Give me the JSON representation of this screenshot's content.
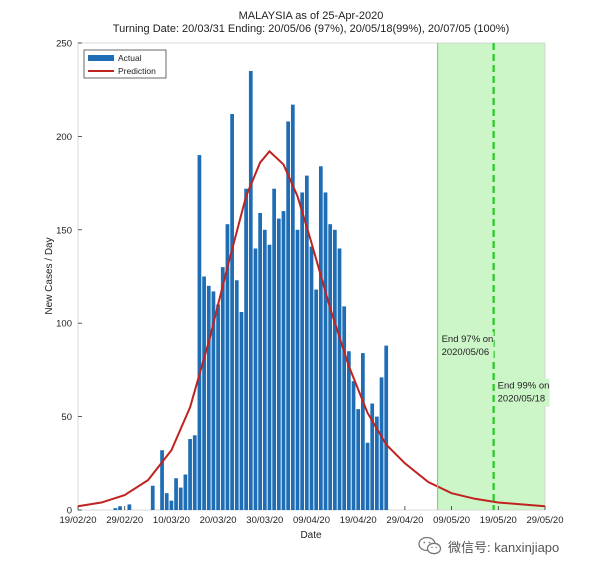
{
  "chart_data": {
    "type": "bar",
    "title": "MALAYSIA as of 25-Apr-2020",
    "subtitle": "Turning Date: 20/03/31  Ending: 20/05/06 (97%), 20/05/18(99%), 20/07/05 (100%)",
    "xlabel": "Date",
    "ylabel": "New Cases / Day",
    "ylim": [
      0,
      250
    ],
    "yticks": [
      "0",
      "50",
      "100",
      "150",
      "200",
      "250"
    ],
    "xticks": [
      "19/02/20",
      "29/02/20",
      "10/03/20",
      "20/03/20",
      "30/03/20",
      "09/04/20",
      "19/04/20",
      "29/04/20",
      "09/05/20",
      "19/05/20",
      "29/05/20"
    ],
    "x_start": "2020-02-19",
    "x_end": "2020-05-29",
    "legend": {
      "placement": "top-left",
      "entries": [
        "Actual",
        "Prediction"
      ]
    },
    "series": [
      {
        "name": "Actual",
        "type": "bar",
        "start_date": "2020-02-19",
        "values": [
          0,
          0,
          0,
          0,
          0,
          0,
          0,
          0,
          1,
          2,
          0,
          3,
          0,
          0,
          0,
          0,
          13,
          0,
          32,
          9,
          5,
          17,
          12,
          19,
          38,
          40,
          190,
          125,
          120,
          117,
          110,
          130,
          153,
          212,
          123,
          106,
          172,
          235,
          140,
          159,
          150,
          142,
          172,
          156,
          160,
          208,
          217,
          150,
          170,
          179,
          141,
          118,
          184,
          170,
          153,
          150,
          140,
          109,
          85,
          69,
          54,
          84,
          36,
          57,
          50,
          71,
          88
        ],
        "color": "#1f6eb5"
      },
      {
        "name": "Prediction",
        "type": "line",
        "color": "#c0231f",
        "peak_date": "2020-03-31",
        "peak_value": 192,
        "points": [
          [
            "2020-02-19",
            2
          ],
          [
            "2020-02-24",
            4
          ],
          [
            "2020-02-29",
            8
          ],
          [
            "2020-03-05",
            16
          ],
          [
            "2020-03-10",
            32
          ],
          [
            "2020-03-14",
            55
          ],
          [
            "2020-03-18",
            90
          ],
          [
            "2020-03-22",
            130
          ],
          [
            "2020-03-26",
            168
          ],
          [
            "2020-03-29",
            186
          ],
          [
            "2020-03-31",
            192
          ],
          [
            "2020-04-03",
            185
          ],
          [
            "2020-04-06",
            168
          ],
          [
            "2020-04-09",
            143
          ],
          [
            "2020-04-13",
            108
          ],
          [
            "2020-04-17",
            77
          ],
          [
            "2020-04-21",
            52
          ],
          [
            "2020-04-25",
            35
          ],
          [
            "2020-04-29",
            25
          ],
          [
            "2020-05-04",
            15
          ],
          [
            "2020-05-09",
            9
          ],
          [
            "2020-05-14",
            6
          ],
          [
            "2020-05-19",
            4
          ],
          [
            "2020-05-24",
            3
          ],
          [
            "2020-05-29",
            2
          ]
        ]
      }
    ],
    "shaded_region": {
      "start": "2020-05-06",
      "end": "2020-05-29",
      "color": "#ccf5c8"
    },
    "vlines": [
      {
        "date": "2020-05-06",
        "color": "#7dd87a",
        "style": "solid"
      },
      {
        "date": "2020-05-18",
        "color": "#27c927",
        "style": "dashed"
      }
    ],
    "annotations": [
      {
        "date": "2020-05-06",
        "value": 91,
        "lines": [
          "End 97% on",
          "2020/05/06"
        ]
      },
      {
        "date": "2020-05-18",
        "value": 66,
        "lines": [
          "End 99% on",
          "2020/05/18"
        ]
      }
    ]
  },
  "watermark": {
    "text": "微信号: kanxinjiapo",
    "icon": "wechat-icon"
  }
}
